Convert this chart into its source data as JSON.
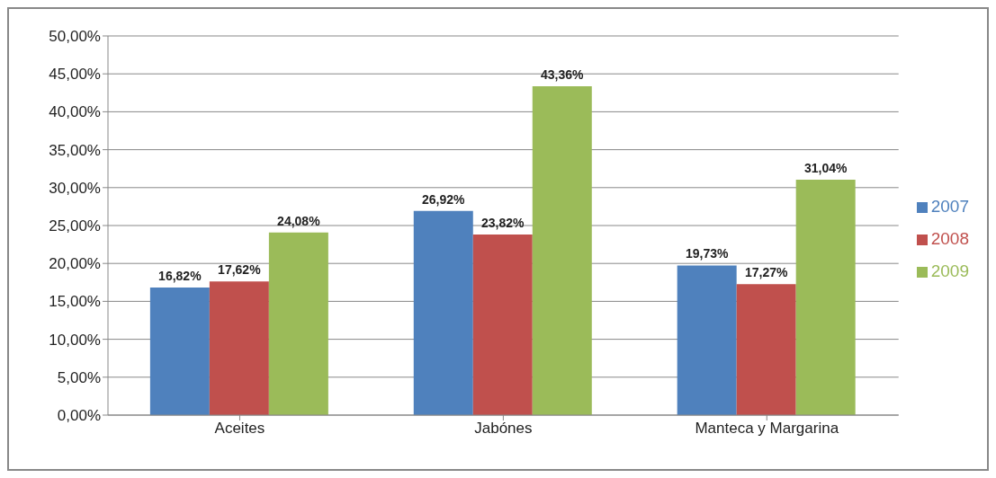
{
  "chart_data": {
    "type": "bar",
    "categories": [
      "Aceites",
      "Jabónes",
      "Manteca y Margarina"
    ],
    "series": [
      {
        "name": "2007",
        "color": "#4f81bd",
        "values": [
          16.82,
          26.92,
          19.73
        ],
        "value_labels": [
          "16,82%",
          "26,92%",
          "19,73%"
        ]
      },
      {
        "name": "2008",
        "color": "#c0504d",
        "values": [
          17.62,
          23.82,
          17.27
        ],
        "value_labels": [
          "17,62%",
          "23,82%",
          "17,27%"
        ]
      },
      {
        "name": "2009",
        "color": "#9bbb59",
        "values": [
          24.08,
          43.36,
          31.04
        ],
        "value_labels": [
          "24,08%",
          "43,36%",
          "31,04%"
        ]
      }
    ],
    "ylim": [
      0,
      50
    ],
    "yticks": [
      {
        "value": 0,
        "label": "0,00%"
      },
      {
        "value": 5,
        "label": "5,00%"
      },
      {
        "value": 10,
        "label": "10,00%"
      },
      {
        "value": 15,
        "label": "15,00%"
      },
      {
        "value": 20,
        "label": "20,00%"
      },
      {
        "value": 25,
        "label": "25,00%"
      },
      {
        "value": 30,
        "label": "30,00%"
      },
      {
        "value": 35,
        "label": "35,00%"
      },
      {
        "value": 40,
        "label": "40,00%"
      },
      {
        "value": 45,
        "label": "45,00%"
      },
      {
        "value": 50,
        "label": "50,00%"
      }
    ],
    "grid": "y",
    "legend": "right"
  }
}
